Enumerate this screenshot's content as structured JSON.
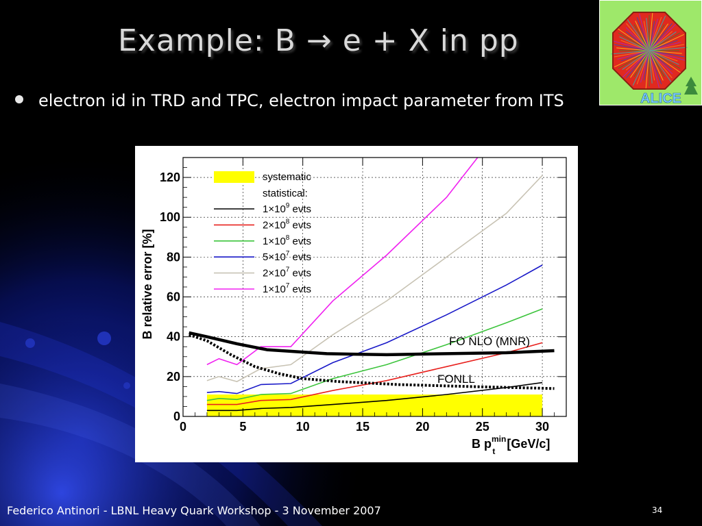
{
  "slide": {
    "title": "Example: B → e + X in pp",
    "bullet": "electron id in TRD and TPC, electron impact parameter from ITS",
    "footer": "Federico Antinori - LBNL Heavy Quark Workshop - 3 November 2007",
    "page_number": "34"
  },
  "logo": {
    "text": "ALICE"
  },
  "colors": {
    "background": "#000000",
    "systematic": "#ffff00"
  },
  "chart_data": {
    "type": "line",
    "xlabel": "B p",
    "xlabel_sup": "min",
    "xlabel_sub": "t",
    "xlabel_unit": "[GeV/c]",
    "ylabel": "B relative error [%]",
    "xlim": [
      0,
      32
    ],
    "ylim": [
      0,
      130
    ],
    "xticks": [
      0,
      5,
      10,
      15,
      20,
      25,
      30
    ],
    "yticks": [
      0,
      20,
      40,
      60,
      80,
      100,
      120
    ],
    "grid": true,
    "legend_position": "top-left",
    "legend_header": "statistical:",
    "systematic": {
      "label": "systematic",
      "color": "#ffff00",
      "x": [
        2,
        30
      ],
      "y": [
        0,
        11
      ]
    },
    "x": [
      2,
      3,
      4.5,
      6.5,
      9,
      12.5,
      17,
      22,
      27,
      30
    ],
    "series": [
      {
        "label": "1×10",
        "exp": "9",
        "suffix": " evts",
        "color": "#000000",
        "values": [
          3,
          3,
          3,
          4,
          4.5,
          6,
          8,
          11,
          14.5,
          17
        ]
      },
      {
        "label": "2×10",
        "exp": "8",
        "suffix": " evts",
        "color": "#e8201d",
        "values": [
          6,
          6,
          6,
          8,
          8.5,
          13,
          18,
          25,
          32,
          37
        ]
      },
      {
        "label": "1×10",
        "exp": "8",
        "suffix": " evts",
        "color": "#3cc43c",
        "values": [
          8,
          9,
          8.5,
          11,
          11.5,
          19,
          26,
          36,
          47,
          54
        ]
      },
      {
        "label": "5×10",
        "exp": "7",
        "suffix": " evts",
        "color": "#1818c8",
        "values": [
          12,
          12.5,
          11.5,
          16,
          16.5,
          27,
          37,
          51,
          66,
          76
        ]
      },
      {
        "label": "2×10",
        "exp": "7",
        "suffix": " evts",
        "color": "#c8c3b4",
        "values": [
          18,
          20,
          17.5,
          24,
          26,
          41,
          58,
          80,
          102,
          121
        ]
      },
      {
        "label": "1×10",
        "exp": "7",
        "suffix": " evts",
        "color": "#f020f0",
        "x": [
          2,
          3,
          4.5,
          6.5,
          9,
          12.5,
          17,
          22,
          24.6
        ],
        "values": [
          26,
          29,
          26,
          35,
          35,
          58,
          81,
          110,
          130
        ]
      }
    ],
    "theory": [
      {
        "label": "FO NLO (MNR)",
        "style": "solid",
        "x": [
          0.5,
          2,
          4.5,
          7,
          12,
          17,
          22,
          27,
          31
        ],
        "values": [
          42,
          40,
          36.5,
          33.5,
          31.5,
          31,
          31.5,
          32,
          33
        ]
      },
      {
        "label": "FONLL",
        "style": "dotted",
        "x": [
          0.5,
          2,
          4,
          6,
          8,
          10,
          13,
          18,
          24,
          31
        ],
        "values": [
          41,
          38,
          31,
          25,
          21.5,
          19,
          17.5,
          16,
          15,
          14
        ]
      }
    ]
  }
}
